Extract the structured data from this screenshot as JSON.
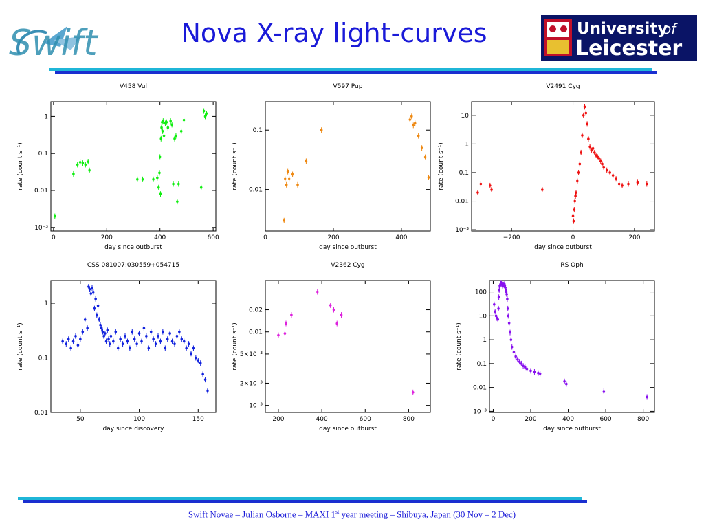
{
  "header": {
    "title": "Nova X-ray light-curves",
    "swift_logo_text": "Swift",
    "university_line1": "University",
    "university_of": "of",
    "university_line2": "Leicester"
  },
  "footer": {
    "pre": "Swift Novae – Julian Osborne – MAXI 1",
    "sup": "st",
    "post": " year meeting – Shibuya, Japan (30 Nov – 2 Dec)"
  },
  "chart_data": [
    {
      "type": "scatter",
      "title": "V458 Vul",
      "xlabel": "day since outburst",
      "ylabel": "rate (count s⁻¹)",
      "xlim": [
        -10,
        610
      ],
      "ylim": [
        0.0008,
        2.5
      ],
      "ylog": true,
      "xticks": [
        0,
        200,
        400,
        600
      ],
      "xticklabels": [
        "0",
        "200",
        "400",
        "600"
      ],
      "yticks": [
        0.001,
        0.01,
        0.1,
        1
      ],
      "yticklabels": [
        "10⁻³",
        "0.01",
        "0.1",
        "1"
      ],
      "color": "#11ee11",
      "x": [
        5,
        75,
        90,
        100,
        110,
        120,
        130,
        135,
        315,
        335,
        375,
        390,
        395,
        398,
        400,
        402,
        404,
        406,
        408,
        410,
        412,
        415,
        420,
        425,
        430,
        440,
        445,
        450,
        455,
        460,
        465,
        470,
        480,
        490,
        555,
        565,
        570,
        575
      ],
      "y": [
        0.002,
        0.028,
        0.05,
        0.058,
        0.055,
        0.05,
        0.06,
        0.035,
        0.02,
        0.02,
        0.02,
        0.022,
        0.012,
        0.03,
        0.08,
        0.008,
        0.25,
        0.5,
        0.7,
        0.4,
        0.75,
        0.3,
        0.65,
        0.7,
        0.5,
        0.75,
        0.6,
        0.015,
        0.25,
        0.3,
        0.005,
        0.015,
        0.4,
        0.8,
        0.012,
        1.4,
        1.0,
        1.2
      ]
    },
    {
      "type": "scatter",
      "title": "V597 Pup",
      "xlabel": "day since outburst",
      "ylabel": "rate (count s⁻¹)",
      "xlim": [
        0,
        485
      ],
      "ylim": [
        0.002,
        0.3
      ],
      "ylog": true,
      "xticks": [
        0,
        200,
        400
      ],
      "xticklabels": [
        "0",
        "200",
        "400"
      ],
      "yticks": [
        0.01,
        0.1
      ],
      "yticklabels": [
        "0.01",
        "0.1"
      ],
      "color": "#ee8811",
      "x": [
        55,
        58,
        62,
        66,
        70,
        80,
        95,
        120,
        165,
        425,
        430,
        435,
        440,
        450,
        460,
        470,
        480
      ],
      "y": [
        0.003,
        0.015,
        0.012,
        0.02,
        0.015,
        0.018,
        0.012,
        0.03,
        0.1,
        0.15,
        0.17,
        0.12,
        0.13,
        0.08,
        0.05,
        0.035,
        0.016
      ]
    },
    {
      "type": "scatter",
      "title": "V2491 Cyg",
      "xlabel": "day since outburst",
      "ylabel": "rate (count s⁻¹)",
      "xlim": [
        -330,
        265
      ],
      "ylim": [
        0.0009,
        30
      ],
      "ylog": true,
      "xticks": [
        -200,
        0,
        200
      ],
      "xticklabels": [
        "−200",
        "0",
        "200"
      ],
      "yticks": [
        0.001,
        0.01,
        0.1,
        1,
        10
      ],
      "yticklabels": [
        "10⁻³",
        "0.01",
        "0.1",
        "1",
        "10"
      ],
      "color": "#ee1111",
      "x": [
        -310,
        -300,
        -270,
        -265,
        -100,
        0,
        2,
        4,
        6,
        8,
        10,
        14,
        18,
        22,
        26,
        30,
        34,
        38,
        42,
        46,
        50,
        55,
        60,
        65,
        70,
        75,
        80,
        85,
        90,
        95,
        100,
        110,
        120,
        130,
        140,
        150,
        160,
        180,
        210,
        240
      ],
      "y": [
        0.02,
        0.04,
        0.035,
        0.025,
        0.025,
        0.003,
        0.002,
        0.005,
        0.01,
        0.015,
        0.02,
        0.05,
        0.1,
        0.2,
        0.5,
        2,
        10,
        20,
        12,
        5,
        1.5,
        0.8,
        0.6,
        0.7,
        0.5,
        0.4,
        0.35,
        0.3,
        0.25,
        0.2,
        0.15,
        0.12,
        0.1,
        0.08,
        0.06,
        0.04,
        0.035,
        0.04,
        0.045,
        0.04
      ]
    },
    {
      "type": "scatter",
      "title": "CSS 081007:030559+054715",
      "xlabel": "day since discovery",
      "ylabel": "rate (count s⁻¹)",
      "xlim": [
        25,
        165
      ],
      "ylim": [
        0.01,
        2.6
      ],
      "ylog": true,
      "xticks": [
        50,
        100,
        150
      ],
      "xticklabels": [
        "50",
        "100",
        "150"
      ],
      "yticks": [
        0.01,
        0.1,
        1
      ],
      "yticklabels": [
        "0.01",
        "0.1",
        "1"
      ],
      "color": "#1122dd",
      "x": [
        35,
        38,
        40,
        42,
        44,
        46,
        48,
        50,
        52,
        54,
        56,
        57,
        58,
        59,
        60,
        61,
        62,
        63,
        64,
        65,
        66,
        67,
        68,
        69,
        70,
        71,
        72,
        73,
        74,
        75,
        76,
        78,
        80,
        82,
        84,
        86,
        88,
        90,
        92,
        94,
        96,
        98,
        100,
        102,
        104,
        106,
        108,
        110,
        112,
        114,
        116,
        118,
        120,
        122,
        124,
        126,
        128,
        130,
        132,
        134,
        136,
        138,
        140,
        142,
        144,
        146,
        148,
        150,
        152,
        154,
        156,
        158
      ],
      "y": [
        0.2,
        0.18,
        0.22,
        0.15,
        0.2,
        0.25,
        0.17,
        0.22,
        0.3,
        0.5,
        0.35,
        2.0,
        1.8,
        1.5,
        1.9,
        1.6,
        0.8,
        1.2,
        0.6,
        0.9,
        0.5,
        0.4,
        0.35,
        0.3,
        0.25,
        0.28,
        0.2,
        0.32,
        0.22,
        0.18,
        0.25,
        0.2,
        0.3,
        0.15,
        0.22,
        0.18,
        0.25,
        0.2,
        0.15,
        0.3,
        0.22,
        0.18,
        0.28,
        0.2,
        0.35,
        0.25,
        0.15,
        0.3,
        0.22,
        0.18,
        0.25,
        0.2,
        0.3,
        0.15,
        0.22,
        0.28,
        0.2,
        0.18,
        0.25,
        0.3,
        0.22,
        0.2,
        0.15,
        0.18,
        0.12,
        0.15,
        0.1,
        0.09,
        0.08,
        0.05,
        0.04,
        0.025
      ]
    },
    {
      "type": "scatter",
      "title": "V2362 Cyg",
      "xlabel": "day since outburst",
      "ylabel": "rate (count s⁻¹)",
      "xlim": [
        140,
        900
      ],
      "ylim": [
        0.0008,
        0.05
      ],
      "ylog": true,
      "xticks": [
        200,
        400,
        600,
        800
      ],
      "xticklabels": [
        "200",
        "400",
        "600",
        "800"
      ],
      "yticks": [
        0.001,
        0.002,
        0.005,
        0.01,
        0.02
      ],
      "yticklabels": [
        "10⁻³",
        "2×10⁻³",
        "5×10⁻³",
        "0.01",
        "0.02"
      ],
      "color": "#dd22dd",
      "x": [
        200,
        230,
        235,
        260,
        380,
        440,
        455,
        470,
        490,
        820
      ],
      "y": [
        0.009,
        0.0095,
        0.013,
        0.017,
        0.035,
        0.023,
        0.02,
        0.013,
        0.017,
        0.0015
      ]
    },
    {
      "type": "scatter",
      "title": "RS Oph",
      "xlabel": "day since outburst",
      "ylabel": "rate (count s⁻¹)",
      "xlim": [
        -20,
        860
      ],
      "ylim": [
        0.0009,
        300
      ],
      "ylog": true,
      "xticks": [
        0,
        200,
        400,
        600,
        800
      ],
      "xticklabels": [
        "0",
        "200",
        "400",
        "600",
        "800"
      ],
      "yticks": [
        0.001,
        0.01,
        0.1,
        1,
        10,
        100
      ],
      "yticklabels": [
        "10⁻³",
        "0.01",
        "0.1",
        "1",
        "10",
        "100"
      ],
      "color": "#8811ee",
      "x": [
        5,
        10,
        15,
        20,
        25,
        28,
        30,
        32,
        35,
        38,
        40,
        42,
        45,
        48,
        50,
        52,
        55,
        58,
        60,
        62,
        65,
        68,
        70,
        72,
        75,
        78,
        80,
        85,
        90,
        95,
        100,
        110,
        120,
        130,
        140,
        150,
        160,
        170,
        180,
        200,
        220,
        240,
        250,
        380,
        390,
        590,
        820
      ],
      "y": [
        30,
        15,
        10,
        8,
        7,
        20,
        60,
        120,
        180,
        200,
        220,
        240,
        220,
        200,
        180,
        230,
        200,
        190,
        210,
        180,
        150,
        120,
        100,
        80,
        50,
        20,
        10,
        5,
        2,
        1,
        0.5,
        0.3,
        0.2,
        0.15,
        0.12,
        0.1,
        0.08,
        0.07,
        0.06,
        0.05,
        0.045,
        0.04,
        0.038,
        0.018,
        0.014,
        0.007,
        0.004
      ]
    }
  ]
}
